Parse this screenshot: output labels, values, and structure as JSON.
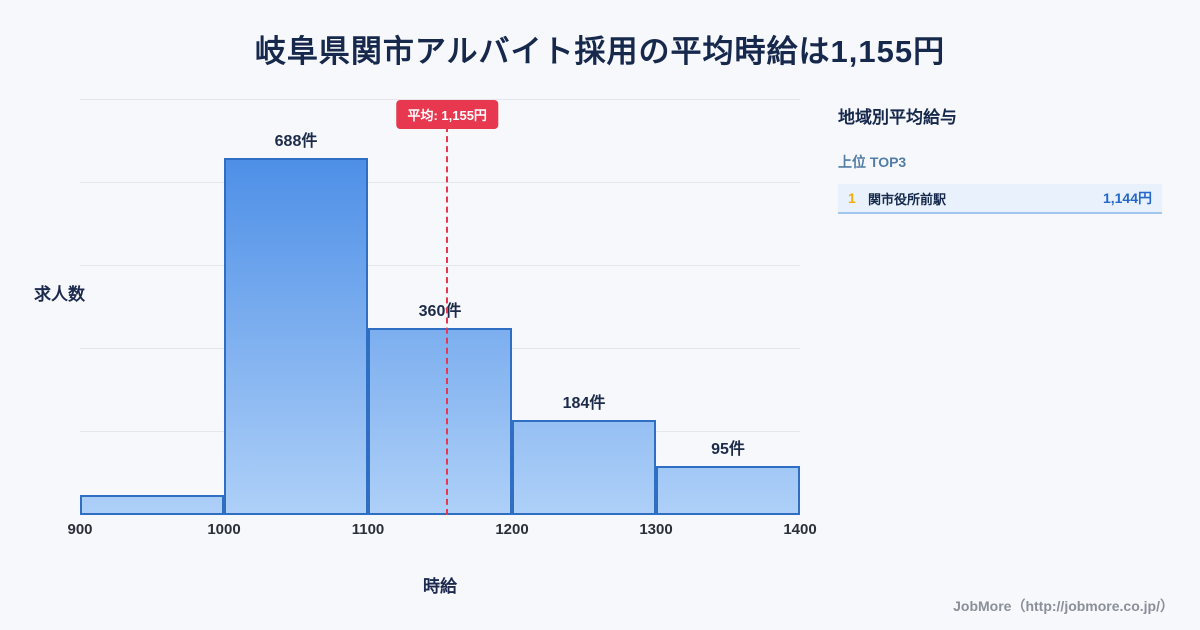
{
  "page": {
    "title": "岐阜県関市アルバイト採用の平均時給は1,155円",
    "footer": "JobMore（http://jobmore.co.jp/）"
  },
  "chart_data": {
    "type": "bar",
    "title": "岐阜県関市アルバイト採用の平均時給は1,155円",
    "xlabel": "時給",
    "ylabel": "求人数",
    "bins": [
      900,
      1000,
      1100,
      1200,
      1300,
      1400
    ],
    "values": [
      38,
      688,
      360,
      184,
      95
    ],
    "bar_labels": [
      "",
      "688件",
      "360件",
      "184件",
      "95件"
    ],
    "average_line": {
      "x": 1155,
      "label": "平均: 1,155円",
      "color": "#e8384f"
    },
    "ylim": [
      0,
      800
    ],
    "y_divisions": 5,
    "grid": true,
    "legend": "none",
    "colors": {
      "bar_gradient_top": "#3d84e4",
      "bar_gradient_bottom": "#aed0f8",
      "bar_border": "#2e6fc4",
      "grid": "#e4e6ec",
      "average": "#e8384f",
      "title_text": "#16294d"
    }
  },
  "side_panel": {
    "title": "地域別平均給与",
    "subtitle": "上位 TOP3",
    "items": [
      {
        "rank": "1",
        "name": "関市役所前駅",
        "value": "1,144円"
      }
    ],
    "colors": {
      "rank": "#f0ad0a",
      "value": "#2468c8",
      "row_bg": "#e9f2fc"
    }
  }
}
